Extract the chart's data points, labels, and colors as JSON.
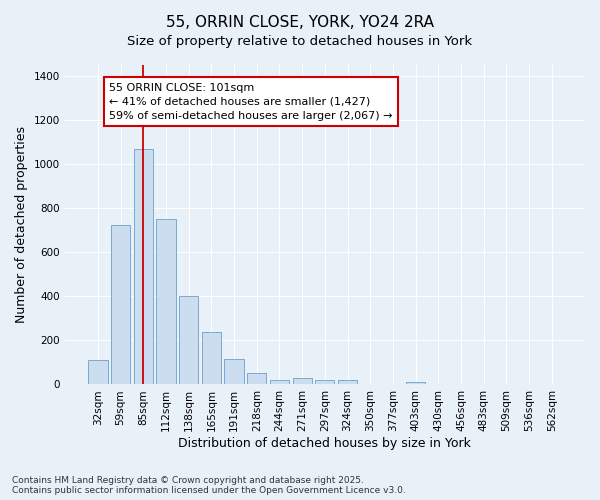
{
  "title": "55, ORRIN CLOSE, YORK, YO24 2RA",
  "subtitle": "Size of property relative to detached houses in York",
  "xlabel": "Distribution of detached houses by size in York",
  "ylabel": "Number of detached properties",
  "categories": [
    "32sqm",
    "59sqm",
    "85sqm",
    "112sqm",
    "138sqm",
    "165sqm",
    "191sqm",
    "218sqm",
    "244sqm",
    "271sqm",
    "297sqm",
    "324sqm",
    "350sqm",
    "377sqm",
    "403sqm",
    "430sqm",
    "456sqm",
    "483sqm",
    "509sqm",
    "536sqm",
    "562sqm"
  ],
  "values": [
    110,
    725,
    1070,
    750,
    400,
    240,
    115,
    50,
    20,
    28,
    22,
    18,
    0,
    0,
    12,
    0,
    0,
    0,
    0,
    0,
    0
  ],
  "bar_color": "#ccddf0",
  "bar_edge_color": "#7aaace",
  "vline_x_index": 2,
  "vline_color": "#cc0000",
  "annotation_text": "55 ORRIN CLOSE: 101sqm\n← 41% of detached houses are smaller (1,427)\n59% of semi-detached houses are larger (2,067) →",
  "annotation_box_facecolor": "#ffffff",
  "annotation_box_edgecolor": "#cc0000",
  "ylim": [
    0,
    1450
  ],
  "yticks": [
    0,
    200,
    400,
    600,
    800,
    1000,
    1200,
    1400
  ],
  "background_color": "#e8f0f8",
  "plot_bg_color": "#e8f0f8",
  "grid_color": "#ffffff",
  "footer_text": "Contains HM Land Registry data © Crown copyright and database right 2025.\nContains public sector information licensed under the Open Government Licence v3.0.",
  "title_fontsize": 11,
  "subtitle_fontsize": 9.5,
  "label_fontsize": 9,
  "tick_fontsize": 7.5,
  "annotation_fontsize": 8,
  "footer_fontsize": 6.5
}
